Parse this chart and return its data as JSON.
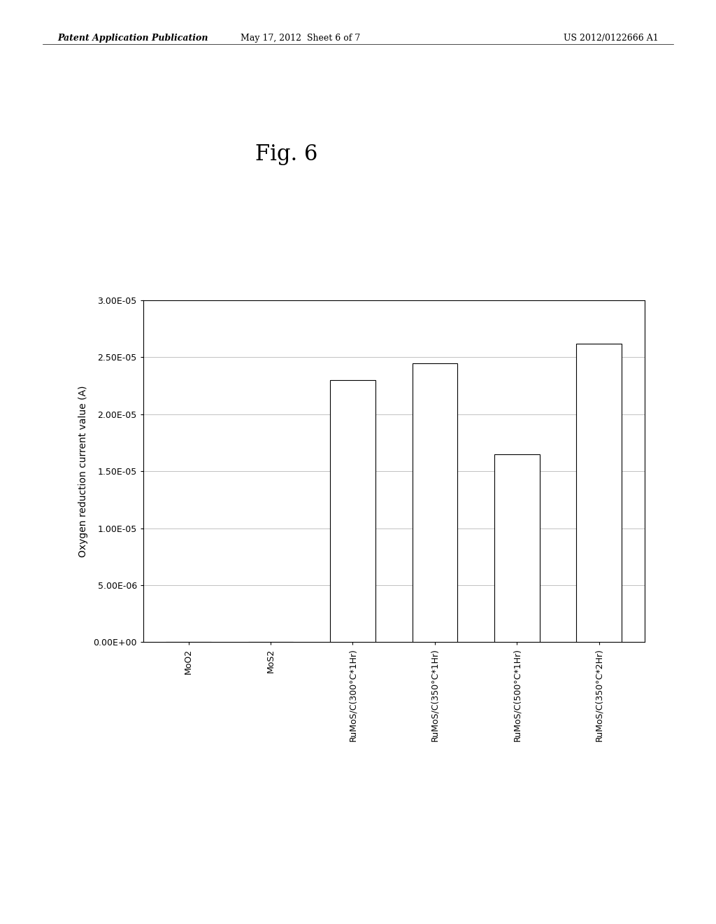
{
  "title": "Fig. 6",
  "ylabel": "Oxygen reduction current value (A)",
  "categories": [
    "MoO2",
    "MoS2",
    "RuMoS/C(300°C*1Hr)",
    "RuMoS/C(350°C*1Hr)",
    "RuMoS/C(500°C*1Hr)",
    "RuMoS/C(350°C*2Hr)"
  ],
  "values": [
    0.0,
    0.0,
    2.3e-05,
    2.45e-05,
    1.65e-05,
    2.62e-05
  ],
  "ylim": [
    0.0,
    3e-05
  ],
  "yticks": [
    0.0,
    5e-06,
    1e-05,
    1.5e-05,
    2e-05,
    2.5e-05,
    3e-05
  ],
  "ytick_labels": [
    "0.00E+00",
    "5.00E-06",
    "1.00E-05",
    "1.50E-05",
    "2.00E-05",
    "2.50E-05",
    "3.00E-05"
  ],
  "bar_color": "#ffffff",
  "bar_edgecolor": "#000000",
  "background_color": "#ffffff",
  "grid_color": "#aaaaaa",
  "title_fontsize": 22,
  "ylabel_fontsize": 10,
  "tick_fontsize": 9,
  "xtick_fontsize": 9,
  "header_left": "Patent Application Publication",
  "header_mid": "May 17, 2012  Sheet 6 of 7",
  "header_right": "US 2012/0122666 A1",
  "page_bg": "#ffffff"
}
